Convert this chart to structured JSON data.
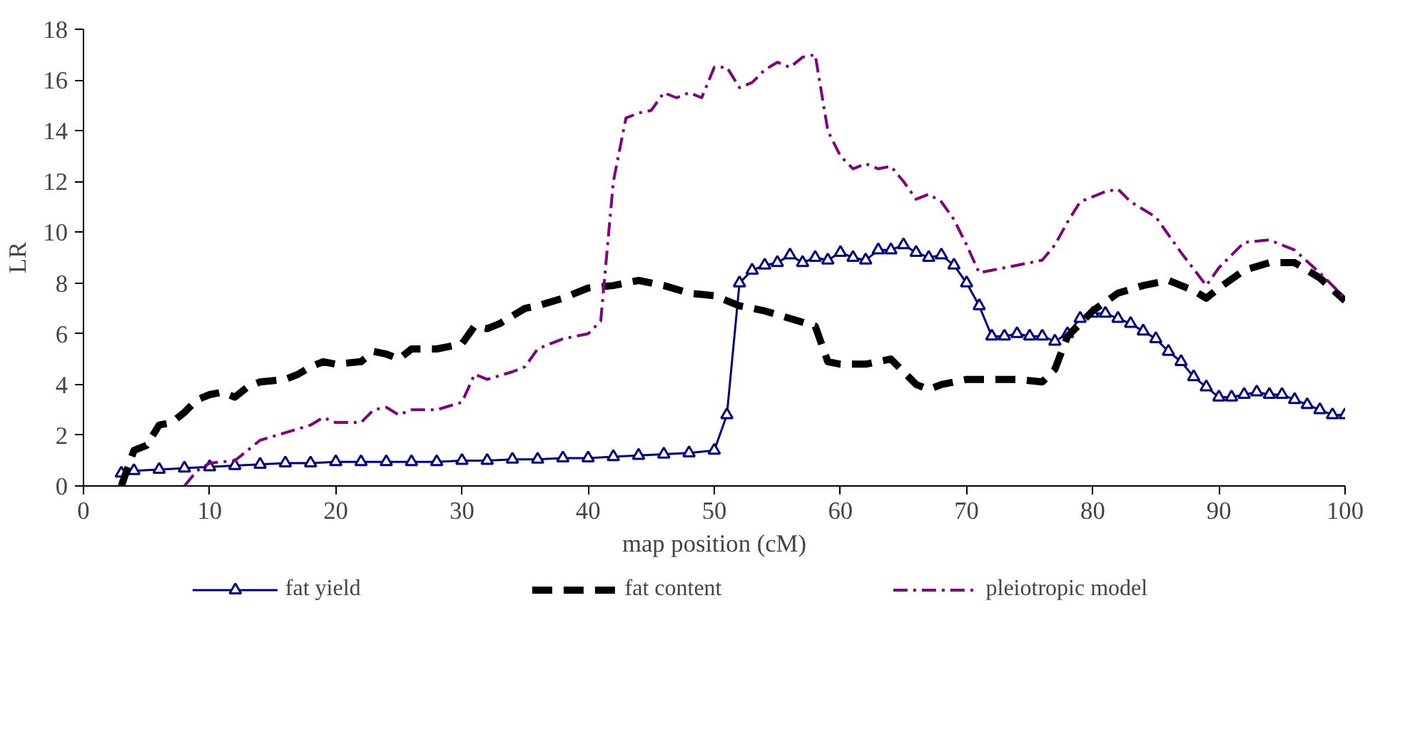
{
  "chart_data": {
    "type": "line",
    "xlabel": "map position (cM)",
    "ylabel": "LR",
    "xlim": [
      0,
      100
    ],
    "xticks": [
      0,
      10,
      20,
      30,
      40,
      50,
      60,
      70,
      80,
      90,
      100
    ],
    "ylim": [
      0,
      18
    ],
    "yticks": [
      0,
      2,
      4,
      6,
      8,
      10,
      12,
      14,
      16,
      18
    ],
    "grid": false,
    "legend": "bottom",
    "series": [
      {
        "name": "fat yield",
        "color": "#000080",
        "marker": "triangle",
        "line_style": "solid",
        "x": [
          3,
          4,
          6,
          8,
          10,
          12,
          14,
          16,
          18,
          20,
          22,
          24,
          26,
          28,
          30,
          32,
          34,
          36,
          38,
          40,
          42,
          44,
          46,
          48,
          50,
          51,
          52,
          53,
          54,
          55,
          56,
          57,
          58,
          59,
          60,
          61,
          62,
          63,
          64,
          65,
          66,
          67,
          68,
          69,
          70,
          71,
          72,
          73,
          74,
          75,
          76,
          77,
          78,
          79,
          80,
          81,
          82,
          83,
          84,
          85,
          86,
          87,
          88,
          89,
          90,
          91,
          92,
          93,
          94,
          95,
          96,
          97,
          98,
          99,
          100
        ],
        "values": [
          0.5,
          0.6,
          0.65,
          0.7,
          0.75,
          0.8,
          0.85,
          0.9,
          0.9,
          0.95,
          0.95,
          0.95,
          0.95,
          0.95,
          1.0,
          1.0,
          1.05,
          1.05,
          1.1,
          1.1,
          1.15,
          1.2,
          1.25,
          1.3,
          1.4,
          2.8,
          8.0,
          8.5,
          8.7,
          8.8,
          9.1,
          8.8,
          9.0,
          8.9,
          9.2,
          9.0,
          8.9,
          9.3,
          9.3,
          9.5,
          9.2,
          9.0,
          9.1,
          8.7,
          8.0,
          7.1,
          5.9,
          5.9,
          6.0,
          5.9,
          5.9,
          5.7,
          6.0,
          6.6,
          6.8,
          6.8,
          6.6,
          6.4,
          6.1,
          5.8,
          5.3,
          4.9,
          4.3,
          3.9,
          3.5,
          3.5,
          3.6,
          3.7,
          3.6,
          3.6,
          3.4,
          3.2,
          3.0,
          2.8,
          2.8
        ]
      },
      {
        "name": "fat content",
        "color": "#000000",
        "marker": "none",
        "line_style": "dashed",
        "x": [
          3,
          4,
          5,
          6,
          7,
          8,
          9,
          10,
          11,
          12,
          13,
          14,
          16,
          17,
          18,
          19,
          20,
          22,
          23,
          24,
          25,
          26,
          28,
          30,
          31,
          32,
          33,
          34,
          35,
          36,
          38,
          40,
          42,
          44,
          46,
          48,
          50,
          52,
          54,
          56,
          58,
          59,
          60,
          62,
          64,
          66,
          67,
          68,
          70,
          72,
          74,
          76,
          77,
          78,
          80,
          82,
          84,
          86,
          88,
          89,
          90,
          92,
          94,
          96,
          98,
          100
        ],
        "values": [
          0,
          1.4,
          1.6,
          2.4,
          2.5,
          2.9,
          3.4,
          3.6,
          3.7,
          3.5,
          3.9,
          4.1,
          4.2,
          4.4,
          4.7,
          4.9,
          4.8,
          4.9,
          5.3,
          5.2,
          5.0,
          5.4,
          5.4,
          5.6,
          6.3,
          6.2,
          6.4,
          6.7,
          7.0,
          7.1,
          7.4,
          7.8,
          7.9,
          8.1,
          7.9,
          7.6,
          7.5,
          7.1,
          6.9,
          6.6,
          6.3,
          4.9,
          4.8,
          4.8,
          5.0,
          4.0,
          3.8,
          4.0,
          4.2,
          4.2,
          4.2,
          4.1,
          4.6,
          5.9,
          6.9,
          7.6,
          7.9,
          8.1,
          7.7,
          7.4,
          7.8,
          8.5,
          8.8,
          8.8,
          8.2,
          7.3
        ]
      },
      {
        "name": "pleiotropic model",
        "color": "#800080",
        "marker": "none",
        "line_style": "dashdot",
        "x": [
          8,
          9,
          10,
          12,
          14,
          16,
          18,
          19,
          20,
          22,
          23,
          24,
          25,
          26,
          28,
          30,
          31,
          32,
          34,
          35,
          36,
          38,
          40,
          41,
          42,
          43,
          44,
          45,
          46,
          47,
          48,
          49,
          50,
          51,
          52,
          53,
          54,
          55,
          56,
          57,
          58,
          59,
          60,
          61,
          62,
          63,
          64,
          65,
          66,
          67,
          68,
          69,
          70,
          71,
          72,
          74,
          76,
          77,
          78,
          79,
          81,
          82,
          83,
          85,
          87,
          89,
          90,
          92,
          94,
          96,
          98,
          100
        ],
        "values": [
          0,
          0.6,
          0.9,
          1.0,
          1.8,
          2.1,
          2.4,
          2.7,
          2.5,
          2.5,
          3.0,
          3.1,
          2.8,
          3.0,
          3.0,
          3.3,
          4.4,
          4.2,
          4.5,
          4.7,
          5.4,
          5.8,
          6.0,
          6.5,
          12.0,
          14.5,
          14.7,
          14.8,
          15.5,
          15.3,
          15.5,
          15.3,
          16.5,
          16.5,
          15.7,
          15.9,
          16.4,
          16.7,
          16.5,
          16.9,
          17.0,
          14.0,
          13.0,
          12.5,
          12.7,
          12.5,
          12.6,
          12.0,
          11.3,
          11.5,
          11.2,
          10.5,
          9.5,
          8.4,
          8.5,
          8.7,
          8.9,
          9.5,
          10.4,
          11.2,
          11.6,
          11.7,
          11.2,
          10.6,
          9.2,
          7.9,
          8.6,
          9.6,
          9.7,
          9.3,
          8.4,
          7.4
        ]
      }
    ]
  }
}
